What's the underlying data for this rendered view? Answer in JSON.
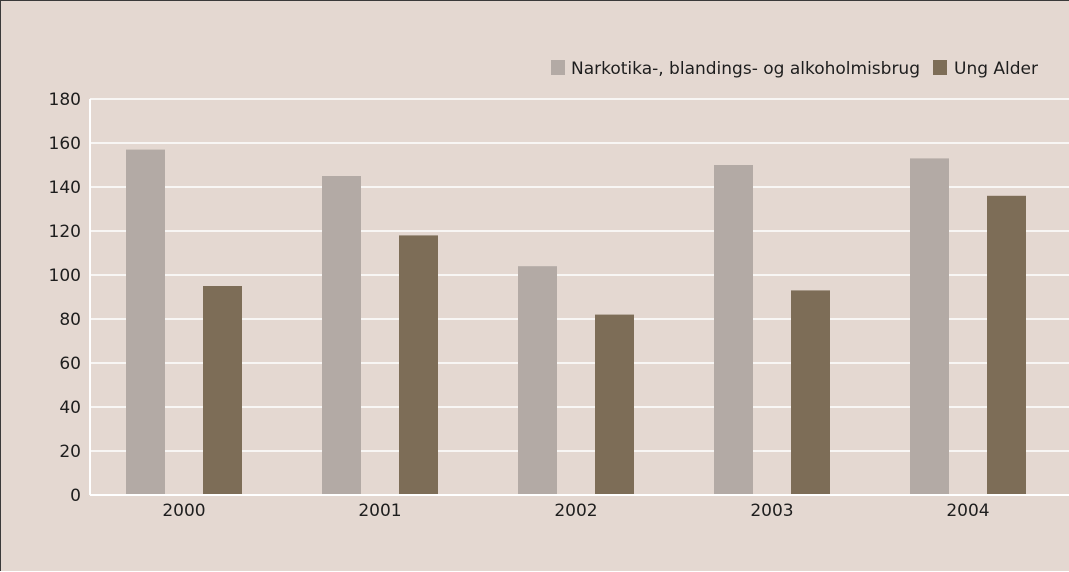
{
  "chart_data": {
    "type": "bar",
    "categories": [
      "2000",
      "2001",
      "2002",
      "2003",
      "2004"
    ],
    "series": [
      {
        "name": "Narkotika-, blandings- og alkoholmisbrug",
        "color": "#b3aaa5",
        "values": [
          157,
          145,
          104,
          150,
          153
        ]
      },
      {
        "name": "Ung Alder",
        "color": "#7d6d57",
        "values": [
          95,
          118,
          82,
          93,
          136
        ]
      }
    ],
    "ylim": [
      0,
      180
    ],
    "yticks": [
      "0",
      "20",
      "40",
      "60",
      "80",
      "100",
      "120",
      "140",
      "160",
      "180"
    ],
    "grid": true,
    "legend_position": "top-right",
    "title": "",
    "xlabel": "",
    "ylabel": ""
  }
}
